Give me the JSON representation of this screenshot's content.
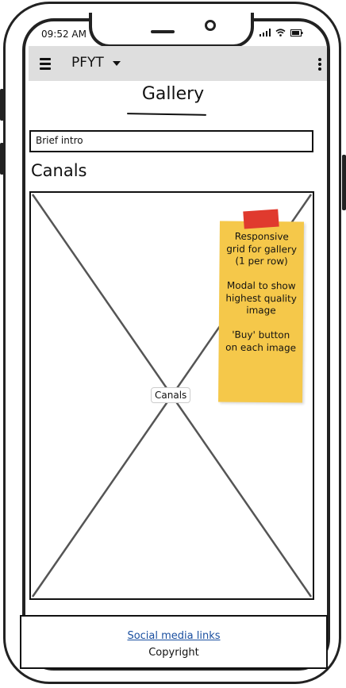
{
  "status_bar": {
    "time": "09:52 AM",
    "icons": [
      "signal-icon",
      "wifi-icon",
      "battery-icon"
    ]
  },
  "header": {
    "title": "PFYT",
    "menu_icon": "hamburger-menu-icon",
    "dropdown_icon": "caret-down-icon",
    "overflow_icon": "kebab-menu-icon"
  },
  "page": {
    "title": "Gallery",
    "intro": "Brief intro",
    "section_title": "Canals",
    "image_caption": "Canals"
  },
  "sticky_note": {
    "lines": [
      "Responsive grid for gallery (1 per row)",
      "Modal to show highest quality image",
      "'Buy' button on each image"
    ]
  },
  "footer": {
    "social_link": "Social media links",
    "copyright": "Copyright"
  },
  "colors": {
    "header_bg": "#dedede",
    "sticky_note": "#f5c84a",
    "tape": "#e03a2e",
    "link": "#1a4fa0"
  }
}
